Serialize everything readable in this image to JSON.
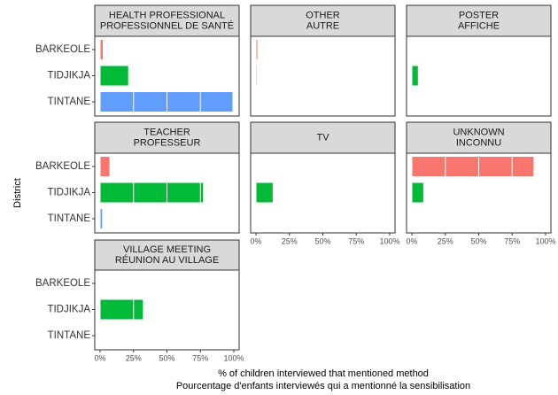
{
  "y_label": "District",
  "x_label": [
    "% of children interviewed that mentioned method",
    "Pourcentage d'enfants interviewés qui a mentionné la sensibilisation"
  ],
  "categories": [
    "BARKEOLE",
    "TIDJIKJA",
    "TINTANE"
  ],
  "colors": [
    "#F8766D",
    "#00BA38",
    "#619CFF"
  ],
  "xlim": [
    0,
    100
  ],
  "xticks": [
    {
      "value": 0,
      "label": "0%"
    },
    {
      "value": 25,
      "label": "25%"
    },
    {
      "value": 50,
      "label": "50%"
    },
    {
      "value": 75,
      "label": "75%"
    },
    {
      "value": 100,
      "label": "100%"
    }
  ],
  "chart_data": [
    {
      "type": "bar",
      "title": [
        "HEALTH PROFESSIONAL",
        "PROFESSIONNEL DE SANTÉ"
      ],
      "values": [
        2,
        21,
        99
      ]
    },
    {
      "type": "bar",
      "title": [
        "OTHER",
        "AUTRE"
      ],
      "values": [
        1,
        0.5,
        null
      ]
    },
    {
      "type": "bar",
      "title": [
        "POSTER",
        "AFFICHE"
      ],
      "values": [
        null,
        4.5,
        null
      ]
    },
    {
      "type": "bar",
      "title": [
        "TEACHER",
        "PROFESSEUR"
      ],
      "values": [
        7,
        77,
        1.5
      ]
    },
    {
      "type": "bar",
      "title": [
        "TV"
      ],
      "values": [
        null,
        12.5,
        null
      ]
    },
    {
      "type": "bar",
      "title": [
        "UNKNOWN",
        "INCONNU"
      ],
      "values": [
        91,
        8.5,
        null
      ]
    },
    {
      "type": "bar",
      "title": [
        "VILLAGE MEETING",
        "RÉUNION AU VILLAGE"
      ],
      "values": [
        null,
        32,
        null
      ]
    }
  ]
}
